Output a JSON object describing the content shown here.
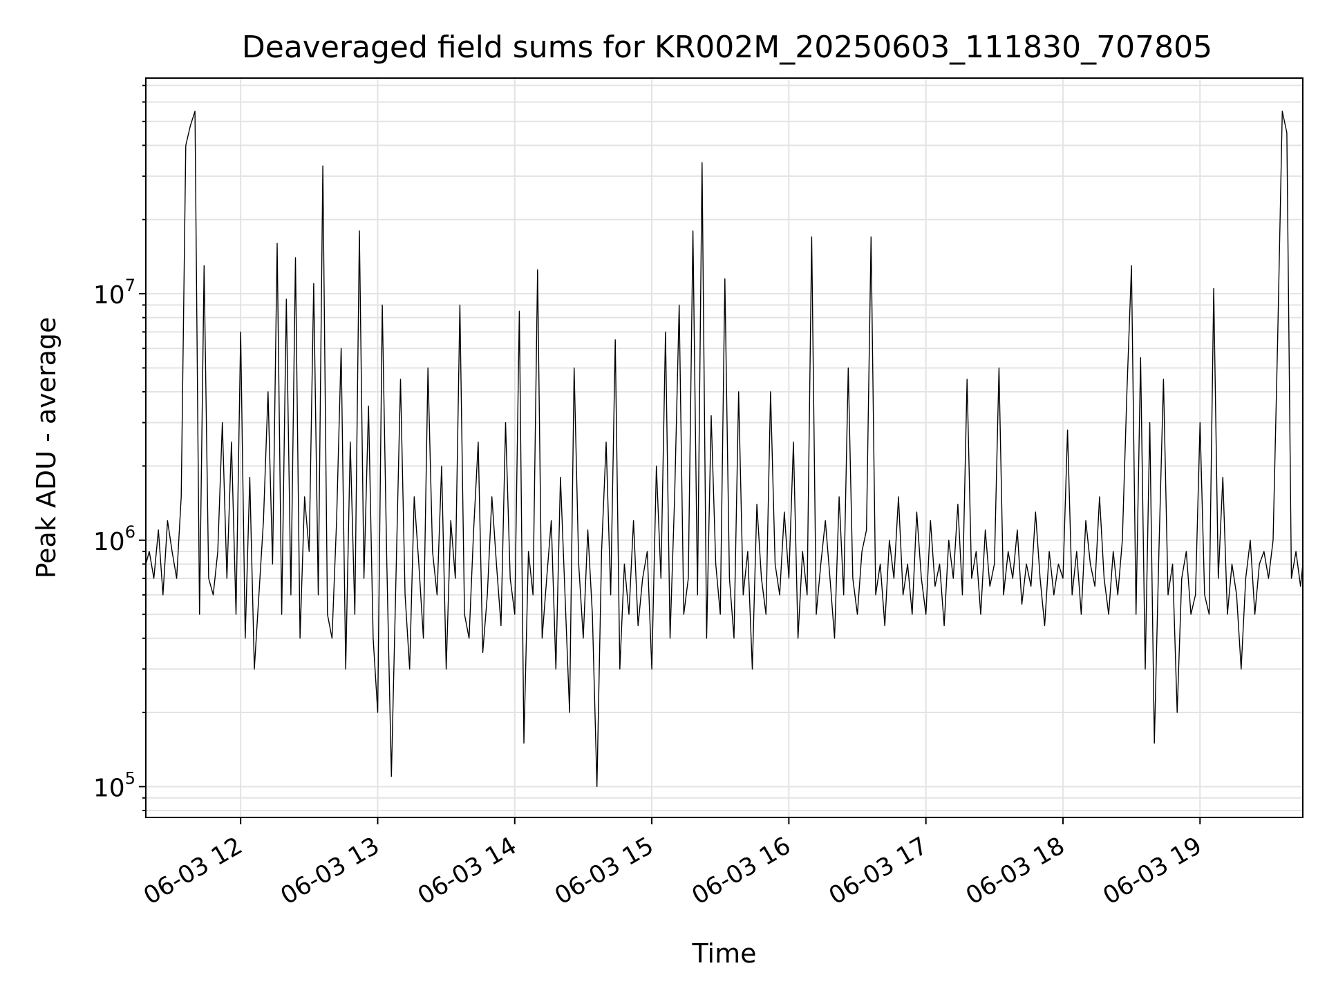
{
  "chart_data": {
    "type": "line",
    "title": "Deaveraged field sums for KR002M_20250603_111830_707805",
    "xlabel": "Time",
    "ylabel": "Peak ADU - average",
    "y_scale": "log",
    "ylim": [
      75000,
      75000000
    ],
    "xlim": [
      "2025-06-03 11:18:30",
      "2025-06-03 19:45:00"
    ],
    "grid": true,
    "line_color": "#000000",
    "x_ticks": [
      {
        "t": "2025-06-03 12:00",
        "label": "06-03 12"
      },
      {
        "t": "2025-06-03 13:00",
        "label": "06-03 13"
      },
      {
        "t": "2025-06-03 14:00",
        "label": "06-03 14"
      },
      {
        "t": "2025-06-03 15:00",
        "label": "06-03 15"
      },
      {
        "t": "2025-06-03 16:00",
        "label": "06-03 16"
      },
      {
        "t": "2025-06-03 17:00",
        "label": "06-03 17"
      },
      {
        "t": "2025-06-03 18:00",
        "label": "06-03 18"
      },
      {
        "t": "2025-06-03 19:00",
        "label": "06-03 19"
      }
    ],
    "y_ticks": [
      {
        "v": 100000,
        "base": "10",
        "exp": "5"
      },
      {
        "v": 1000000,
        "base": "10",
        "exp": "6"
      },
      {
        "v": 10000000,
        "base": "10",
        "exp": "7"
      }
    ],
    "series": [
      {
        "x": [
          "2025-06-03 11:18:30",
          "2025-06-03 11:20",
          "2025-06-03 11:22",
          "2025-06-03 11:24",
          "2025-06-03 11:26",
          "2025-06-03 11:28",
          "2025-06-03 11:30",
          "2025-06-03 11:32",
          "2025-06-03 11:34",
          "2025-06-03 11:36",
          "2025-06-03 11:38",
          "2025-06-03 11:40",
          "2025-06-03 11:42",
          "2025-06-03 11:44",
          "2025-06-03 11:46",
          "2025-06-03 11:48",
          "2025-06-03 11:50",
          "2025-06-03 11:52",
          "2025-06-03 11:54",
          "2025-06-03 11:56",
          "2025-06-03 11:58",
          "2025-06-03 12:00",
          "2025-06-03 12:02",
          "2025-06-03 12:04",
          "2025-06-03 12:06",
          "2025-06-03 12:08",
          "2025-06-03 12:10",
          "2025-06-03 12:12",
          "2025-06-03 12:14",
          "2025-06-03 12:16",
          "2025-06-03 12:18",
          "2025-06-03 12:20",
          "2025-06-03 12:22",
          "2025-06-03 12:24",
          "2025-06-03 12:26",
          "2025-06-03 12:28",
          "2025-06-03 12:30",
          "2025-06-03 12:32",
          "2025-06-03 12:34",
          "2025-06-03 12:36",
          "2025-06-03 12:38",
          "2025-06-03 12:40",
          "2025-06-03 12:42",
          "2025-06-03 12:44",
          "2025-06-03 12:46",
          "2025-06-03 12:48",
          "2025-06-03 12:50",
          "2025-06-03 12:52",
          "2025-06-03 12:54",
          "2025-06-03 12:56",
          "2025-06-03 12:58",
          "2025-06-03 13:00",
          "2025-06-03 13:02",
          "2025-06-03 13:04",
          "2025-06-03 13:06",
          "2025-06-03 13:08",
          "2025-06-03 13:10",
          "2025-06-03 13:12",
          "2025-06-03 13:14",
          "2025-06-03 13:16",
          "2025-06-03 13:18",
          "2025-06-03 13:20",
          "2025-06-03 13:22",
          "2025-06-03 13:24",
          "2025-06-03 13:26",
          "2025-06-03 13:28",
          "2025-06-03 13:30",
          "2025-06-03 13:32",
          "2025-06-03 13:34",
          "2025-06-03 13:36",
          "2025-06-03 13:38",
          "2025-06-03 13:40",
          "2025-06-03 13:42",
          "2025-06-03 13:44",
          "2025-06-03 13:46",
          "2025-06-03 13:48",
          "2025-06-03 13:50",
          "2025-06-03 13:52",
          "2025-06-03 13:54",
          "2025-06-03 13:56",
          "2025-06-03 13:58",
          "2025-06-03 14:00",
          "2025-06-03 14:02",
          "2025-06-03 14:04",
          "2025-06-03 14:06",
          "2025-06-03 14:08",
          "2025-06-03 14:10",
          "2025-06-03 14:12",
          "2025-06-03 14:14",
          "2025-06-03 14:16",
          "2025-06-03 14:18",
          "2025-06-03 14:20",
          "2025-06-03 14:22",
          "2025-06-03 14:24",
          "2025-06-03 14:26",
          "2025-06-03 14:28",
          "2025-06-03 14:30",
          "2025-06-03 14:32",
          "2025-06-03 14:34",
          "2025-06-03 14:36",
          "2025-06-03 14:38",
          "2025-06-03 14:40",
          "2025-06-03 14:42",
          "2025-06-03 14:44",
          "2025-06-03 14:46",
          "2025-06-03 14:48",
          "2025-06-03 14:50",
          "2025-06-03 14:52",
          "2025-06-03 14:54",
          "2025-06-03 14:56",
          "2025-06-03 14:58",
          "2025-06-03 15:00",
          "2025-06-03 15:02",
          "2025-06-03 15:04",
          "2025-06-03 15:06",
          "2025-06-03 15:08",
          "2025-06-03 15:10",
          "2025-06-03 15:12",
          "2025-06-03 15:14",
          "2025-06-03 15:16",
          "2025-06-03 15:18",
          "2025-06-03 15:20",
          "2025-06-03 15:22",
          "2025-06-03 15:24",
          "2025-06-03 15:26",
          "2025-06-03 15:28",
          "2025-06-03 15:30",
          "2025-06-03 15:32",
          "2025-06-03 15:34",
          "2025-06-03 15:36",
          "2025-06-03 15:38",
          "2025-06-03 15:40",
          "2025-06-03 15:42",
          "2025-06-03 15:44",
          "2025-06-03 15:46",
          "2025-06-03 15:48",
          "2025-06-03 15:50",
          "2025-06-03 15:52",
          "2025-06-03 15:54",
          "2025-06-03 15:56",
          "2025-06-03 15:58",
          "2025-06-03 16:00",
          "2025-06-03 16:02",
          "2025-06-03 16:04",
          "2025-06-03 16:06",
          "2025-06-03 16:08",
          "2025-06-03 16:10",
          "2025-06-03 16:12",
          "2025-06-03 16:14",
          "2025-06-03 16:16",
          "2025-06-03 16:18",
          "2025-06-03 16:20",
          "2025-06-03 16:22",
          "2025-06-03 16:24",
          "2025-06-03 16:26",
          "2025-06-03 16:28",
          "2025-06-03 16:30",
          "2025-06-03 16:32",
          "2025-06-03 16:34",
          "2025-06-03 16:36",
          "2025-06-03 16:38",
          "2025-06-03 16:40",
          "2025-06-03 16:42",
          "2025-06-03 16:44",
          "2025-06-03 16:46",
          "2025-06-03 16:48",
          "2025-06-03 16:50",
          "2025-06-03 16:52",
          "2025-06-03 16:54",
          "2025-06-03 16:56",
          "2025-06-03 16:58",
          "2025-06-03 17:00",
          "2025-06-03 17:02",
          "2025-06-03 17:04",
          "2025-06-03 17:06",
          "2025-06-03 17:08",
          "2025-06-03 17:10",
          "2025-06-03 17:12",
          "2025-06-03 17:14",
          "2025-06-03 17:16",
          "2025-06-03 17:18",
          "2025-06-03 17:20",
          "2025-06-03 17:22",
          "2025-06-03 17:24",
          "2025-06-03 17:26",
          "2025-06-03 17:28",
          "2025-06-03 17:30",
          "2025-06-03 17:32",
          "2025-06-03 17:34",
          "2025-06-03 17:36",
          "2025-06-03 17:38",
          "2025-06-03 17:40",
          "2025-06-03 17:42",
          "2025-06-03 17:44",
          "2025-06-03 17:46",
          "2025-06-03 17:48",
          "2025-06-03 17:50",
          "2025-06-03 17:52",
          "2025-06-03 17:54",
          "2025-06-03 17:56",
          "2025-06-03 17:58",
          "2025-06-03 18:00",
          "2025-06-03 18:02",
          "2025-06-03 18:04",
          "2025-06-03 18:06",
          "2025-06-03 18:08",
          "2025-06-03 18:10",
          "2025-06-03 18:12",
          "2025-06-03 18:14",
          "2025-06-03 18:16",
          "2025-06-03 18:18",
          "2025-06-03 18:20",
          "2025-06-03 18:22",
          "2025-06-03 18:24",
          "2025-06-03 18:26",
          "2025-06-03 18:28",
          "2025-06-03 18:30",
          "2025-06-03 18:32",
          "2025-06-03 18:34",
          "2025-06-03 18:36",
          "2025-06-03 18:38",
          "2025-06-03 18:40",
          "2025-06-03 18:42",
          "2025-06-03 18:44",
          "2025-06-03 18:46",
          "2025-06-03 18:48",
          "2025-06-03 18:50",
          "2025-06-03 18:52",
          "2025-06-03 18:54",
          "2025-06-03 18:56",
          "2025-06-03 18:58",
          "2025-06-03 19:00",
          "2025-06-03 19:02",
          "2025-06-03 19:04",
          "2025-06-03 19:06",
          "2025-06-03 19:08",
          "2025-06-03 19:10",
          "2025-06-03 19:12",
          "2025-06-03 19:14",
          "2025-06-03 19:16",
          "2025-06-03 19:18",
          "2025-06-03 19:20",
          "2025-06-03 19:22",
          "2025-06-03 19:24",
          "2025-06-03 19:26",
          "2025-06-03 19:28",
          "2025-06-03 19:30",
          "2025-06-03 19:32",
          "2025-06-03 19:34",
          "2025-06-03 19:36",
          "2025-06-03 19:38",
          "2025-06-03 19:40",
          "2025-06-03 19:42",
          "2025-06-03 19:44",
          "2025-06-03 19:45"
        ],
        "y": [
          800000,
          900000,
          700000,
          1100000,
          600000,
          1200000,
          900000,
          700000,
          1500000,
          40000000,
          48000000,
          55000000,
          500000,
          13000000,
          700000,
          600000,
          900000,
          3000000,
          700000,
          2500000,
          500000,
          7000000,
          400000,
          1800000,
          300000,
          600000,
          1200000,
          4000000,
          800000,
          16000000,
          500000,
          9500000,
          600000,
          14000000,
          400000,
          1500000,
          900000,
          11000000,
          600000,
          33000000,
          500000,
          400000,
          1200000,
          6000000,
          300000,
          2500000,
          500000,
          18000000,
          700000,
          3500000,
          400000,
          200000,
          9000000,
          800000,
          110000,
          700000,
          4500000,
          600000,
          300000,
          1500000,
          800000,
          400000,
          5000000,
          900000,
          600000,
          2000000,
          300000,
          1200000,
          700000,
          9000000,
          500000,
          400000,
          1100000,
          2500000,
          350000,
          600000,
          1500000,
          800000,
          450000,
          3000000,
          700000,
          500000,
          8500000,
          150000,
          900000,
          600000,
          12500000,
          400000,
          700000,
          1200000,
          300000,
          1800000,
          600000,
          200000,
          5000000,
          800000,
          400000,
          1100000,
          500000,
          100000,
          900000,
          2500000,
          600000,
          6500000,
          300000,
          800000,
          500000,
          1200000,
          450000,
          700000,
          900000,
          300000,
          2000000,
          700000,
          7000000,
          400000,
          1500000,
          9000000,
          500000,
          700000,
          18000000,
          600000,
          34000000,
          400000,
          3200000,
          800000,
          500000,
          11500000,
          700000,
          400000,
          4000000,
          600000,
          900000,
          300000,
          1400000,
          700000,
          500000,
          4000000,
          800000,
          600000,
          1300000,
          700000,
          2500000,
          400000,
          900000,
          600000,
          17000000,
          500000,
          800000,
          1200000,
          700000,
          400000,
          1500000,
          600000,
          5000000,
          700000,
          500000,
          900000,
          1100000,
          17000000,
          600000,
          800000,
          450000,
          1000000,
          700000,
          1500000,
          600000,
          800000,
          500000,
          1300000,
          700000,
          500000,
          1200000,
          650000,
          800000,
          450000,
          1000000,
          700000,
          1400000,
          600000,
          4500000,
          700000,
          900000,
          500000,
          1100000,
          650000,
          800000,
          5000000,
          600000,
          900000,
          700000,
          1100000,
          550000,
          800000,
          650000,
          1300000,
          700000,
          450000,
          900000,
          600000,
          800000,
          700000,
          2800000,
          600000,
          900000,
          500000,
          1200000,
          800000,
          650000,
          1500000,
          700000,
          500000,
          900000,
          600000,
          1000000,
          4000000,
          13000000,
          500000,
          5500000,
          300000,
          3000000,
          150000,
          900000,
          4500000,
          600000,
          800000,
          200000,
          700000,
          900000,
          500000,
          600000,
          3000000,
          600000,
          500000,
          10500000,
          700000,
          1800000,
          500000,
          800000,
          600000,
          300000,
          700000,
          1000000,
          500000,
          800000,
          900000,
          700000,
          1000000,
          6500000,
          55000000,
          45000000,
          700000,
          900000,
          650000,
          800000
        ]
      }
    ]
  }
}
